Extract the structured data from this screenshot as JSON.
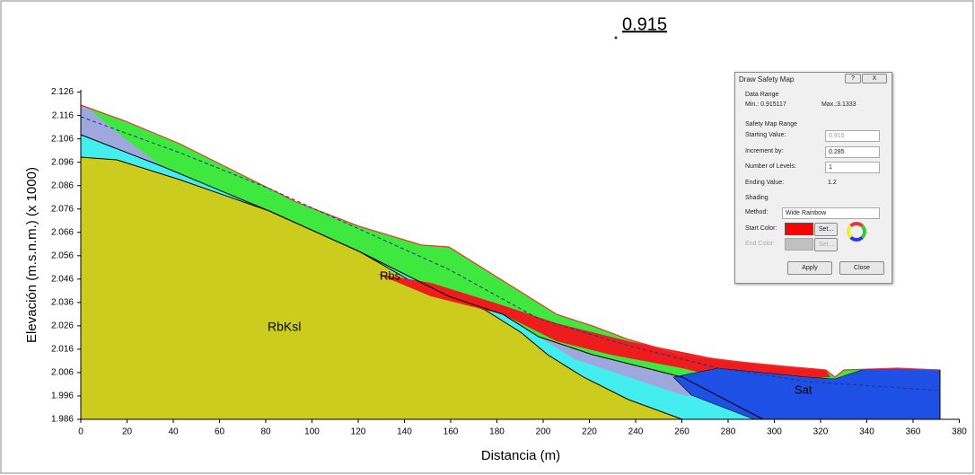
{
  "plot": {
    "title": "0.915",
    "xlabel": "Distancia (m)",
    "ylabel": "Elevación (m.s.n.m.) (x 1000)",
    "xlim": [
      0,
      380
    ],
    "ylim": [
      1.986,
      2.127
    ],
    "xticks": [
      0,
      20,
      40,
      60,
      80,
      100,
      120,
      140,
      160,
      180,
      200,
      220,
      240,
      260,
      280,
      300,
      320,
      340,
      360,
      380
    ],
    "yticks": [
      1.986,
      1.996,
      2.006,
      2.016,
      2.026,
      2.036,
      2.046,
      2.056,
      2.066,
      2.076,
      2.086,
      2.096,
      2.106,
      2.116,
      2.126
    ],
    "labels": [
      "RbKsl",
      "Rbs",
      "Sat"
    ]
  },
  "dialog": {
    "title": "Draw Safety Map",
    "help": "?",
    "close_x": "X",
    "data_range": {
      "heading": "Data Range",
      "min": "Min.: 0.915117",
      "max": "Max.:3.1333"
    },
    "range": {
      "heading": "Safety Map Range",
      "starting_label": "Starting Value:",
      "starting_value": "0.915",
      "increment_label": "Increment by:",
      "increment_value": "0.285",
      "levels_label": "Number of Levels:",
      "levels_value": "1",
      "ending_label": "Ending Value:",
      "ending_value": "1.2"
    },
    "shading": {
      "heading": "Shading",
      "method_label": "Method:",
      "method_value": "Wide Rainbow",
      "start_label": "Start Color:",
      "end_label": "End Color:",
      "set": "Set..."
    },
    "buttons": {
      "apply": "Apply",
      "close": "Close"
    }
  }
}
